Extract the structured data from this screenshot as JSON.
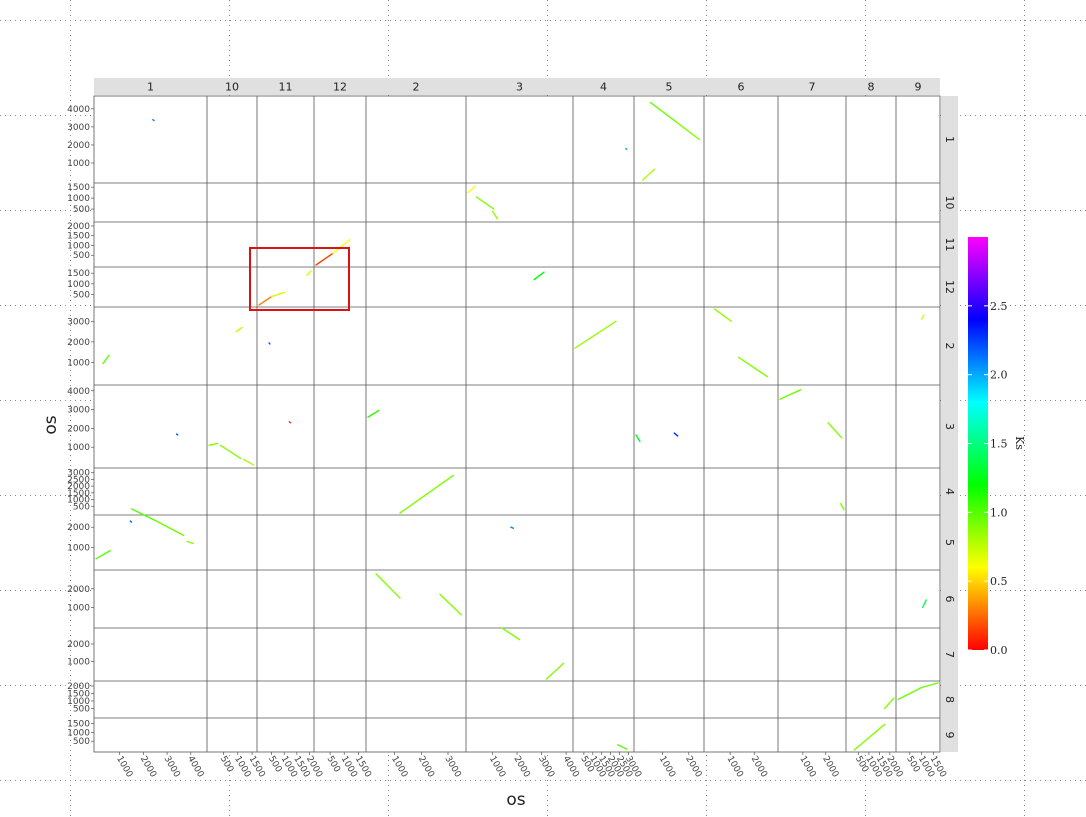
{
  "chart_data": {
    "type": "scatter",
    "title": "",
    "xlabel": "os",
    "ylabel": "os",
    "chromosomes_x": [
      {
        "name": "1",
        "ticks": [
          "1000",
          "2000",
          "3000",
          "4000"
        ],
        "max": 4600
      },
      {
        "name": "10",
        "ticks": [
          "500",
          "1000",
          "1500"
        ],
        "max": 1600
      },
      {
        "name": "11",
        "ticks": [
          "500",
          "1000",
          "1500",
          "2000"
        ],
        "max": 2100
      },
      {
        "name": "12",
        "ticks": [
          "500",
          "1000",
          "1500"
        ],
        "max": 1700
      },
      {
        "name": "2",
        "ticks": [
          "1000",
          "2000",
          "3000"
        ],
        "max": 3600
      },
      {
        "name": "3",
        "ticks": [
          "1000",
          "2000",
          "3000",
          "4000"
        ],
        "max": 4200
      },
      {
        "name": "4",
        "ticks": [
          "500",
          "1000",
          "1500",
          "2000",
          "2500",
          "3000"
        ],
        "max": 3200
      },
      {
        "name": "5",
        "ticks": [
          "1000",
          "2000"
        ],
        "max": 2500
      },
      {
        "name": "6",
        "ticks": [
          "1000",
          "2000"
        ],
        "max": 2900
      },
      {
        "name": "7",
        "ticks": [
          "1000",
          "2000"
        ],
        "max": 2800
      },
      {
        "name": "8",
        "ticks": [
          "500",
          "1000",
          "1500",
          "2000"
        ],
        "max": 2200
      },
      {
        "name": "9",
        "ticks": [
          "500",
          "1000",
          "1500"
        ],
        "max": 1700
      }
    ],
    "chromosomes_y": [
      {
        "name": "1",
        "ticks": [
          "1000",
          "2000",
          "3000",
          "4000"
        ],
        "max": 4600
      },
      {
        "name": "10",
        "ticks": [
          "500",
          "1000",
          "1500"
        ],
        "max": 1600
      },
      {
        "name": "11",
        "ticks": [
          "500",
          "1000",
          "1500",
          "2000"
        ],
        "max": 2100
      },
      {
        "name": "12",
        "ticks": [
          "500",
          "1000",
          "1500"
        ],
        "max": 1700
      },
      {
        "name": "2",
        "ticks": [
          "1000",
          "2000",
          "3000"
        ],
        "max": 3600
      },
      {
        "name": "3",
        "ticks": [
          "1000",
          "2000",
          "3000",
          "4000"
        ],
        "max": 4200
      },
      {
        "name": "4",
        "ticks": [
          "500",
          "1000",
          "1500",
          "2000",
          "2500",
          "3000"
        ],
        "max": 3200
      },
      {
        "name": "5",
        "ticks": [
          "1000",
          "2000"
        ],
        "max": 2500
      },
      {
        "name": "6",
        "ticks": [
          "1000",
          "2000"
        ],
        "max": 2900
      },
      {
        "name": "7",
        "ticks": [
          "1000",
          "2000"
        ],
        "max": 2800
      },
      {
        "name": "8",
        "ticks": [
          "500",
          "1000",
          "1500",
          "2000"
        ],
        "max": 2200
      },
      {
        "name": "9",
        "ticks": [
          "500",
          "1000",
          "1500"
        ],
        "max": 1700
      }
    ],
    "colorbar": {
      "label": "Ks",
      "range": [
        0,
        3
      ],
      "ticks": [
        "0.0",
        "0.5",
        "1.0",
        "1.5",
        "2.0",
        "2.5"
      ],
      "colors": [
        "#ff0000",
        "#ffff00",
        "#00ff00",
        "#00ffff",
        "#0000ff",
        "#ff00ff"
      ]
    },
    "segments": [
      {
        "xc": "1",
        "x1": 1500,
        "x2": 2550,
        "yc": "5",
        "y1": 2900,
        "y2": 2300,
        "ks": 1.0
      },
      {
        "xc": "1",
        "x1": 2550,
        "x2": 3700,
        "yc": "5",
        "y1": 2300,
        "y2": 1600,
        "ks": 0.95
      },
      {
        "xc": "1",
        "x1": 3850,
        "x2": 4100,
        "yc": "5",
        "y1": 1300,
        "y2": 1200,
        "ks": 0.9
      },
      {
        "xc": "1",
        "x1": 0,
        "x2": 600,
        "yc": "5",
        "y1": 450,
        "y2": 850,
        "ks": 1.0
      },
      {
        "xc": "1",
        "x1": 300,
        "x2": 550,
        "yc": "2",
        "y1": 950,
        "y2": 1350,
        "ks": 1.0
      },
      {
        "xc": "10",
        "x1": 0,
        "x2": 300,
        "yc": "3",
        "y1": 1100,
        "y2": 1200,
        "ks": 0.9
      },
      {
        "xc": "10",
        "x1": 400,
        "x2": 1100,
        "yc": "3",
        "y1": 1100,
        "y2": 400,
        "ks": 0.9
      },
      {
        "xc": "10",
        "x1": 1200,
        "x2": 1550,
        "yc": "3",
        "y1": 350,
        "y2": 50,
        "ks": 0.8
      },
      {
        "xc": "10",
        "x1": 950,
        "x2": 1150,
        "yc": "2",
        "y1": 2500,
        "y2": 2700,
        "ks": 0.75
      },
      {
        "xc": "11",
        "x1": 0,
        "x2": 500,
        "yc": "12",
        "y1": 0,
        "y2": 400,
        "ks": 0.3
      },
      {
        "xc": "11",
        "x1": 500,
        "x2": 1000,
        "yc": "12",
        "y1": 400,
        "y2": 600,
        "ks": 0.7
      },
      {
        "xc": "11",
        "x1": 1900,
        "x2": 2050,
        "yc": "12",
        "y1": 1400,
        "y2": 1600,
        "ks": 0.7
      },
      {
        "xc": "12",
        "x1": 0,
        "x2": 600,
        "yc": "11",
        "y1": 0,
        "y2": 600,
        "ks": 0.15
      },
      {
        "xc": "12",
        "x1": 600,
        "x2": 1200,
        "yc": "11",
        "y1": 600,
        "y2": 1300,
        "ks": 0.6
      },
      {
        "xc": "2",
        "x1": 1200,
        "x2": 3200,
        "yc": "4",
        "y1": 0,
        "y2": 2800,
        "ks": 0.9
      },
      {
        "xc": "2",
        "x1": 300,
        "x2": 1200,
        "yc": "6",
        "y1": 2800,
        "y2": 1500,
        "ks": 0.9
      },
      {
        "xc": "2",
        "x1": 2700,
        "x2": 3500,
        "yc": "6",
        "y1": 1700,
        "y2": 600,
        "ks": 0.9
      },
      {
        "xc": "2",
        "x1": 0,
        "x2": 400,
        "yc": "3",
        "y1": 2600,
        "y2": 2950,
        "ks": 1.1
      },
      {
        "xc": "3",
        "x1": 0,
        "x2": 300,
        "yc": "10",
        "y1": 1250,
        "y2": 1550,
        "ks": 0.6
      },
      {
        "xc": "3",
        "x1": 350,
        "x2": 1050,
        "yc": "10",
        "y1": 1050,
        "y2": 500,
        "ks": 0.9
      },
      {
        "xc": "3",
        "x1": 1000,
        "x2": 1200,
        "yc": "10",
        "y1": 400,
        "y2": 50,
        "ks": 0.85
      },
      {
        "xc": "3",
        "x1": 1400,
        "x2": 2100,
        "yc": "7",
        "y1": 2900,
        "y2": 2250,
        "ks": 0.9
      },
      {
        "xc": "3",
        "x1": 3200,
        "x2": 3900,
        "yc": "7",
        "y1": 0,
        "y2": 900,
        "ks": 0.9
      },
      {
        "xc": "3",
        "x1": 2700,
        "x2": 3100,
        "yc": "12",
        "y1": 1200,
        "y2": 1550,
        "ks": 1.2
      },
      {
        "xc": "4",
        "x1": 0,
        "x2": 2300,
        "yc": "2",
        "y1": 1700,
        "y2": 3000,
        "ks": 0.85
      },
      {
        "xc": "4",
        "x1": 2400,
        "x2": 2900,
        "yc": "9",
        "y1": 300,
        "y2": 50,
        "ks": 1.0
      },
      {
        "xc": "5",
        "x1": 550,
        "x2": 1500,
        "yc": "1",
        "y1": 4350,
        "y2": 3300,
        "ks": 0.95
      },
      {
        "xc": "5",
        "x1": 1500,
        "x2": 2400,
        "yc": "1",
        "y1": 3300,
        "y2": 2300,
        "ks": 0.9
      },
      {
        "xc": "5",
        "x1": 250,
        "x2": 700,
        "yc": "1",
        "y1": 50,
        "y2": 650,
        "ks": 0.8
      },
      {
        "xc": "5",
        "x1": 0,
        "x2": 150,
        "yc": "3",
        "y1": 1650,
        "y2": 1300,
        "ks": 1.3
      },
      {
        "xc": "5",
        "x1": 1450,
        "x2": 1580,
        "yc": "3",
        "y1": 1750,
        "y2": 1600,
        "ks": 2.3
      },
      {
        "xc": "6",
        "x1": 350,
        "x2": 1050,
        "yc": "2",
        "y1": 3600,
        "y2": 3000,
        "ks": 0.85
      },
      {
        "xc": "6",
        "x1": 1350,
        "x2": 2550,
        "yc": "2",
        "y1": 1250,
        "y2": 300,
        "ks": 0.9
      },
      {
        "xc": "7",
        "x1": 0,
        "x2": 900,
        "yc": "3",
        "y1": 3550,
        "y2": 4050,
        "ks": 0.95
      },
      {
        "xc": "7",
        "x1": 2100,
        "x2": 2700,
        "yc": "3",
        "y1": 2300,
        "y2": 1500,
        "ks": 0.9
      },
      {
        "xc": "7",
        "x1": 2650,
        "x2": 2800,
        "yc": "4",
        "y1": 700,
        "y2": 250,
        "ks": 0.9
      },
      {
        "xc": "8",
        "x1": 300,
        "x2": 1750,
        "yc": "9",
        "y1": 0,
        "y2": 1450,
        "ks": 0.9
      },
      {
        "xc": "8",
        "x1": 1750,
        "x2": 2200,
        "yc": "8",
        "y1": 500,
        "y2": 1200,
        "ks": 0.9
      },
      {
        "xc": "9",
        "x1": 0,
        "x2": 1000,
        "yc": "8",
        "y1": 1100,
        "y2": 1900,
        "ks": 0.95
      },
      {
        "xc": "9",
        "x1": 1000,
        "x2": 1700,
        "yc": "8",
        "y1": 1900,
        "y2": 2200,
        "ks": 0.95
      },
      {
        "xc": "9",
        "x1": 1050,
        "x2": 1200,
        "yc": "6",
        "y1": 1000,
        "y2": 1400,
        "ks": 1.4
      },
      {
        "xc": "9",
        "x1": 1000,
        "x2": 1100,
        "yc": "2",
        "y1": 3100,
        "y2": 3300,
        "ks": 0.7
      },
      {
        "xc": "1",
        "x1": 1450,
        "x2": 1500,
        "yc": "5",
        "y1": 2300,
        "y2": 2250,
        "ks": 2.2
      },
      {
        "xc": "3",
        "x1": 1750,
        "x2": 1850,
        "yc": "5",
        "y1": 2000,
        "y2": 1950,
        "ks": 2.1
      },
      {
        "xc": "4",
        "x1": 2850,
        "x2": 2900,
        "yc": "1",
        "y1": 1800,
        "y2": 1750,
        "ks": 2.0
      },
      {
        "xc": "1",
        "x1": 2400,
        "x2": 2450,
        "yc": "1",
        "y1": 3400,
        "y2": 3350,
        "ks": 2.1
      },
      {
        "xc": "1",
        "x1": 3400,
        "x2": 3450,
        "yc": "3",
        "y1": 1700,
        "y2": 1650,
        "ks": 2.2
      },
      {
        "xc": "11",
        "x1": 1200,
        "x2": 1250,
        "yc": "3",
        "y1": 2350,
        "y2": 2300,
        "ks": 0.1
      },
      {
        "xc": "11",
        "x1": 400,
        "x2": 430,
        "yc": "2",
        "y1": 1950,
        "y2": 1900,
        "ks": 2.2
      }
    ]
  }
}
